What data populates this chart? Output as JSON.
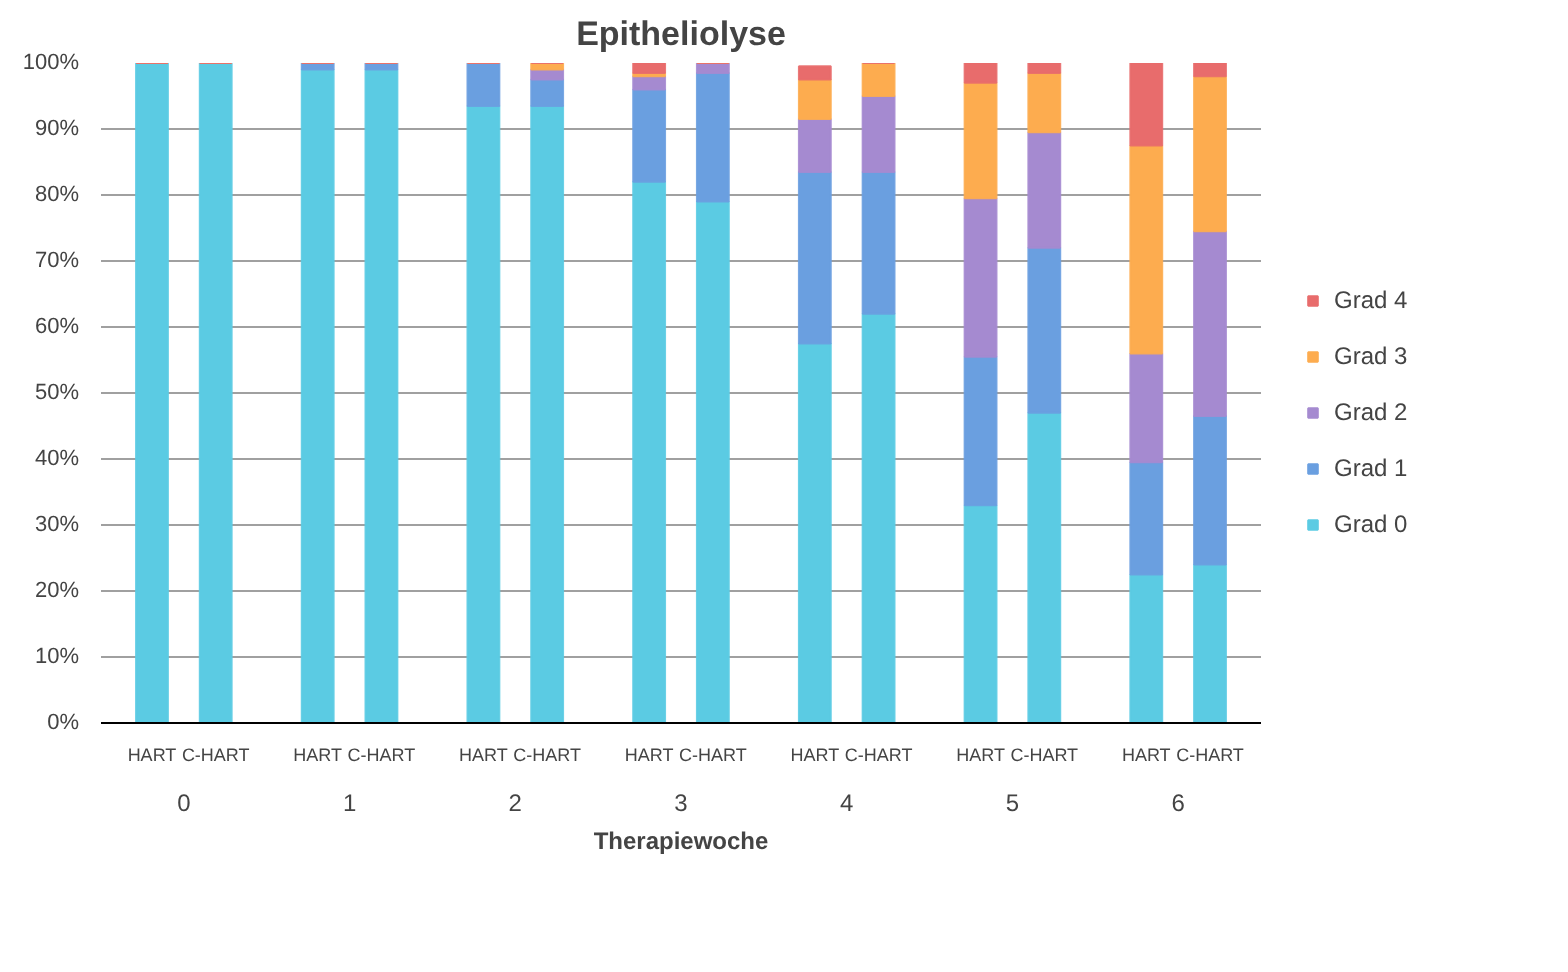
{
  "chart_data": {
    "type": "bar",
    "stacked": true,
    "title": "Epitheliolyse",
    "xlabel": "Therapiewoche",
    "categories": [
      "HART",
      "C-HART",
      "HART",
      "C-HART",
      "HART",
      "C-HART",
      "HART",
      "C-HART",
      "HART",
      "C-HART",
      "HART",
      "C-HART",
      "HART",
      "C-HART"
    ],
    "annotations": [
      "0",
      "1",
      "2",
      "3",
      "4",
      "5",
      "6"
    ],
    "series": [
      {
        "name": "Grad 0",
        "color": "#5bcbe3",
        "values": [
          100,
          100,
          99,
          99,
          93.5,
          93.5,
          82,
          79,
          57.5,
          62,
          33,
          47,
          22.5,
          24
        ]
      },
      {
        "name": "Grad 1",
        "color": "#6a9fe0",
        "values": [
          0,
          0,
          1,
          1,
          6.5,
          4,
          14,
          19.5,
          26,
          21.5,
          22.5,
          25,
          17,
          22.5
        ]
      },
      {
        "name": "Grad 2",
        "color": "#a58ad0",
        "values": [
          0,
          0,
          0,
          0,
          0,
          1.5,
          2,
          1.5,
          8,
          11.5,
          24,
          17.5,
          16.5,
          28
        ]
      },
      {
        "name": "Grad 3",
        "color": "#fdac4f",
        "values": [
          0,
          0,
          0,
          0,
          0,
          1,
          0.5,
          0,
          6,
          5,
          17.5,
          9,
          31.5,
          23.5
        ]
      },
      {
        "name": "Grad 4",
        "color": "#e86c6c",
        "values": [
          0,
          0,
          0,
          0,
          0,
          0,
          1.5,
          0,
          2,
          0,
          3,
          1.5,
          12.5,
          2
        ]
      }
    ],
    "ylim": [
      0,
      100
    ],
    "yticks": [
      {
        "value": 0,
        "label": "0%"
      },
      {
        "value": 10,
        "label": "10%"
      },
      {
        "value": 20,
        "label": "20%"
      },
      {
        "value": 30,
        "label": "30%"
      },
      {
        "value": 40,
        "label": "40%"
      },
      {
        "value": 50,
        "label": "50%"
      },
      {
        "value": 60,
        "label": "60%"
      },
      {
        "value": 70,
        "label": "70%"
      },
      {
        "value": 80,
        "label": "80%"
      },
      {
        "value": 90,
        "label": "90%"
      },
      {
        "value": 100,
        "label": "100%"
      }
    ],
    "grid": "y",
    "legend": "right"
  }
}
